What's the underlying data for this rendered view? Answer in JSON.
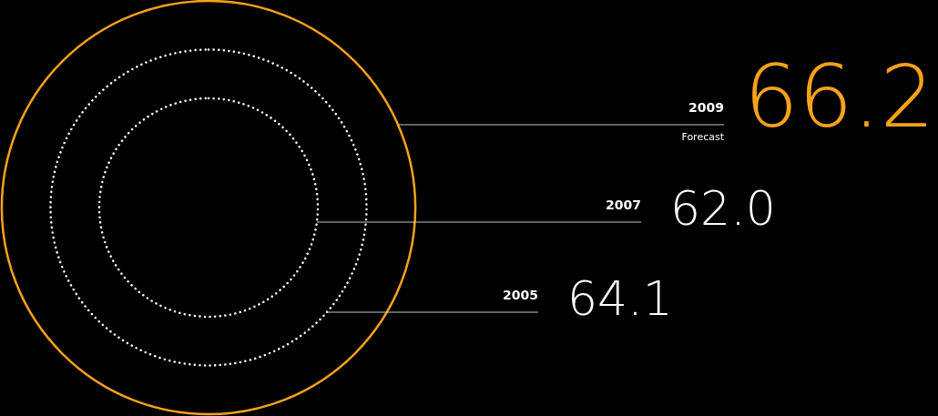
{
  "chart_data": {
    "type": "other",
    "categories": [
      "2009",
      "2007",
      "2005"
    ],
    "values": [
      66.2,
      62.0,
      64.1
    ],
    "value_labels": [
      "66.2",
      "62.0",
      "64.1"
    ],
    "colors": [
      "#f7a21b",
      "#ffffff",
      "#ffffff"
    ],
    "annotations": [
      "Forecast"
    ]
  }
}
